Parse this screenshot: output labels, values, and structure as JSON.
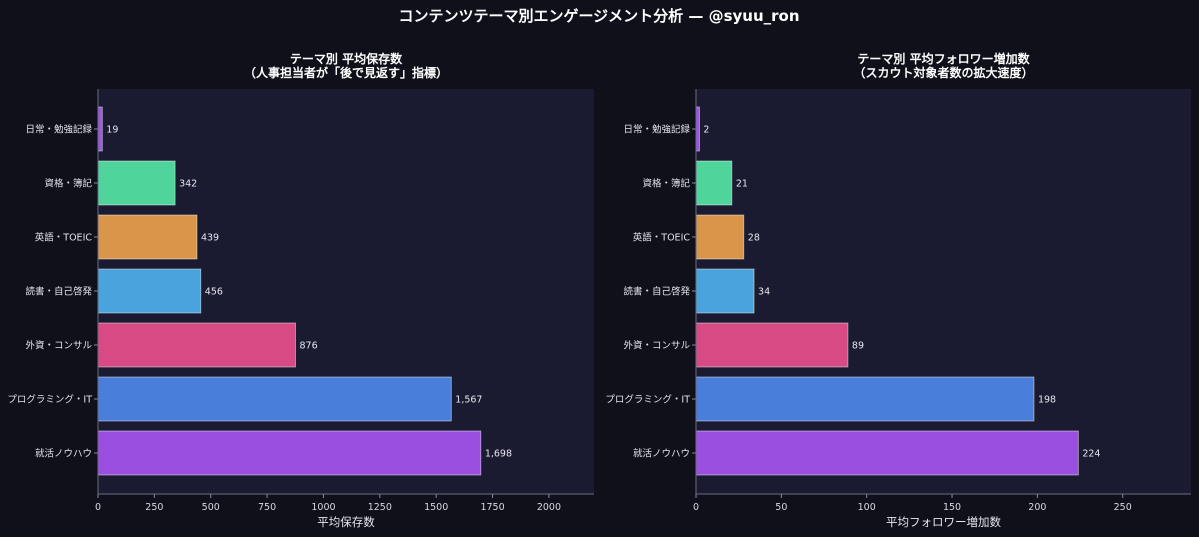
{
  "figure": {
    "suptitle": "コンテンツテーマ別エンゲージメント分析 — @syuu_ron",
    "colors": {
      "background": "#0f1019",
      "plot_bg": "#1a1b31",
      "bars": [
        "#9d55e3",
        "#4fd49b",
        "#d9954a",
        "#4aa3dc",
        "#d84a84",
        "#4a7edb",
        "#9a4fe0"
      ]
    }
  },
  "chart_data": [
    {
      "type": "bar",
      "orientation": "horizontal",
      "title_lines": [
        "テーマ別 平均保存数",
        "（人事担当者が「後で見返す」指標）"
      ],
      "categories": [
        "日常・勉強記録",
        "資格・簿記",
        "英語・TOEIC",
        "読書・自己啓発",
        "外資・コンサル",
        "プログラミング・IT",
        "就活ノウハウ"
      ],
      "values": [
        19,
        342,
        439,
        456,
        876,
        1567,
        1698
      ],
      "value_labels": [
        "19",
        "342",
        "439",
        "456",
        "876",
        "1,567",
        "1,698"
      ],
      "xlabel": "平均保存数",
      "xlim": [
        0,
        2200
      ],
      "xticks": [
        "0",
        "250",
        "500",
        "750",
        "1000",
        "1250",
        "1500",
        "1750",
        "2000"
      ],
      "xtick_values": [
        0,
        250,
        500,
        750,
        1000,
        1250,
        1500,
        1750,
        2000
      ],
      "grid": false
    },
    {
      "type": "bar",
      "orientation": "horizontal",
      "title_lines": [
        "テーマ別 平均フォロワー増加数",
        "（スカウト対象者数の拡大速度）"
      ],
      "categories": [
        "日常・勉強記録",
        "資格・簿記",
        "英語・TOEIC",
        "読書・自己啓発",
        "外資・コンサル",
        "プログラミング・IT",
        "就活ノウハウ"
      ],
      "values": [
        2,
        21,
        28,
        34,
        89,
        198,
        224
      ],
      "value_labels": [
        "2",
        "21",
        "28",
        "34",
        "89",
        "198",
        "224"
      ],
      "xlabel": "平均フォロワー増加数",
      "xlim": [
        0,
        290
      ],
      "xticks": [
        "0",
        "50",
        "100",
        "150",
        "200",
        "250"
      ],
      "xtick_values": [
        0,
        50,
        100,
        150,
        200,
        250
      ],
      "grid": false
    }
  ]
}
